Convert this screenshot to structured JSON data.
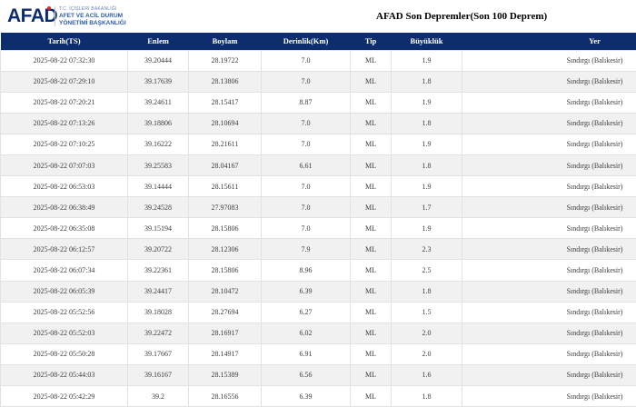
{
  "header": {
    "logo_text": "AFAD",
    "ministry_line1": "T.C. İÇİŞLERİ BAKANLIĞI",
    "ministry_line2": "AFET VE ACİL DURUM",
    "ministry_line3": "YÖNETİMİ BAŞKANLIĞI",
    "page_title": "AFAD Son Depremler(Son 100 Deprem)"
  },
  "table": {
    "columns": [
      "Tarih(TS)",
      "Enlem",
      "Boylam",
      "Derinlik(Km)",
      "Tip",
      "Büyüklük",
      "Yer"
    ],
    "rows": [
      [
        "2025-08-22 07:32:30",
        "39.20444",
        "28.19722",
        "7.0",
        "ML",
        "1.9",
        "Sındırgı (Balıkesir)"
      ],
      [
        "2025-08-22 07:29:10",
        "39.17639",
        "28.13806",
        "7.0",
        "ML",
        "1.8",
        "Sındırgı (Balıkesir)"
      ],
      [
        "2025-08-22 07:20:21",
        "39.24611",
        "28.15417",
        "8.87",
        "ML",
        "1.9",
        "Sındırgı (Balıkesir)"
      ],
      [
        "2025-08-22 07:13:26",
        "39.18806",
        "28.10694",
        "7.0",
        "ML",
        "1.8",
        "Sındırgı (Balıkesir)"
      ],
      [
        "2025-08-22 07:10:25",
        "39.16222",
        "28.21611",
        "7.0",
        "ML",
        "1.9",
        "Sındırgı (Balıkesir)"
      ],
      [
        "2025-08-22 07:07:03",
        "39.25583",
        "28.04167",
        "6.61",
        "ML",
        "1.8",
        "Sındırgı (Balıkesir)"
      ],
      [
        "2025-08-22 06:53:03",
        "39.14444",
        "28.15611",
        "7.0",
        "ML",
        "1.9",
        "Sındırgı (Balıkesir)"
      ],
      [
        "2025-08-22 06:38:49",
        "39.24528",
        "27.97083",
        "7.0",
        "ML",
        "1.7",
        "Sındırgı (Balıkesir)"
      ],
      [
        "2025-08-22 06:35:08",
        "39.15194",
        "28.15806",
        "7.0",
        "ML",
        "1.9",
        "Sındırgı (Balıkesir)"
      ],
      [
        "2025-08-22 06:12:57",
        "39.20722",
        "28.12306",
        "7.9",
        "ML",
        "2.3",
        "Sındırgı (Balıkesir)"
      ],
      [
        "2025-08-22 06:07:34",
        "39.22361",
        "28.15806",
        "8.96",
        "ML",
        "2.5",
        "Sındırgı (Balıkesir)"
      ],
      [
        "2025-08-22 06:05:39",
        "39.24417",
        "28.10472",
        "6.39",
        "ML",
        "1.8",
        "Sındırgı (Balıkesir)"
      ],
      [
        "2025-08-22 05:52:56",
        "39.18028",
        "28.27694",
        "6.27",
        "ML",
        "1.5",
        "Sındırgı (Balıkesir)"
      ],
      [
        "2025-08-22 05:52:03",
        "39.22472",
        "28.16917",
        "6.02",
        "ML",
        "2.0",
        "Sındırgı (Balıkesir)"
      ],
      [
        "2025-08-22 05:50:28",
        "39.17667",
        "28.14917",
        "6.91",
        "ML",
        "2.0",
        "Sındırgı (Balıkesir)"
      ],
      [
        "2025-08-22 05:44:03",
        "39.16167",
        "28.15389",
        "6.56",
        "ML",
        "1.6",
        "Sındırgı (Balıkesir)"
      ],
      [
        "2025-08-22 05:42:29",
        "39.2",
        "28.16556",
        "6.39",
        "ML",
        "1.8",
        "Sındırgı (Balıkesir)"
      ]
    ]
  },
  "colors": {
    "header_navy": "#0e2d6e",
    "logo_navy": "#0e2d6e",
    "logo_red": "#e3262c",
    "ministry_blue": "#2a5da8",
    "row_alt": "#f1f1f1"
  }
}
